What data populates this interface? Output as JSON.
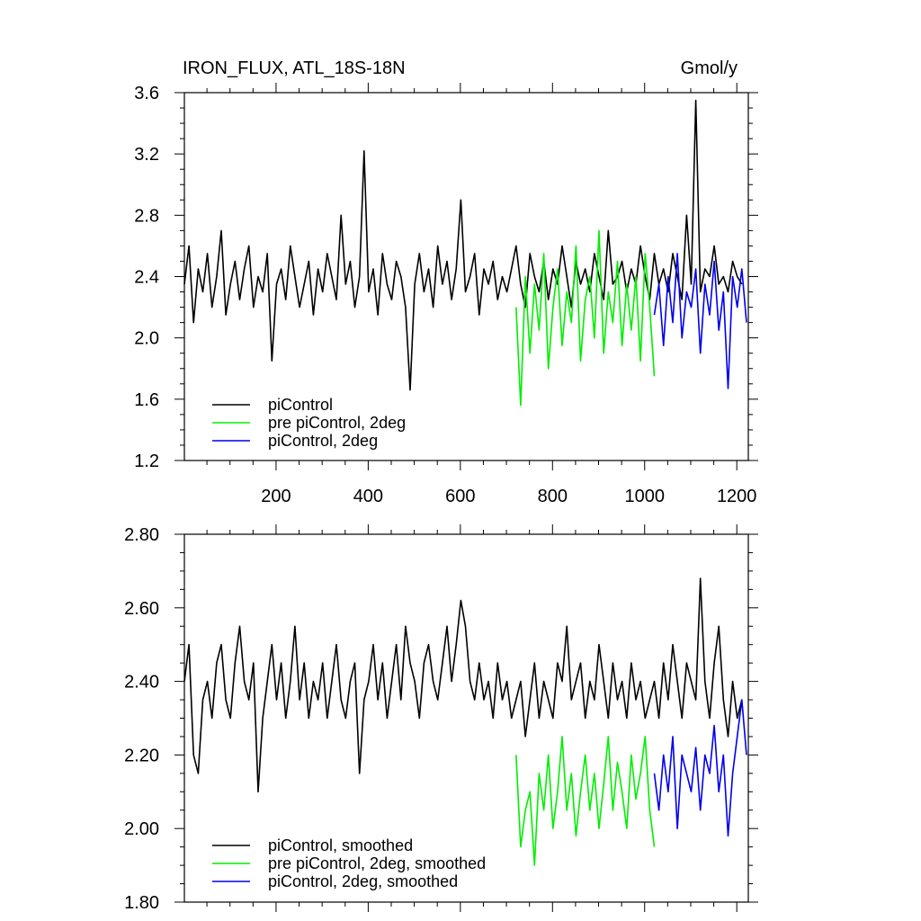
{
  "chart_data": [
    {
      "type": "line",
      "title_left": "IRON_FLUX, ATL_18S-18N",
      "title_right": "Gmol/y",
      "xlabel": "",
      "ylabel": "",
      "xlim": [
        1,
        1225
      ],
      "ylim": [
        1.2,
        3.6
      ],
      "xticks": [
        200,
        400,
        600,
        800,
        1000,
        1200
      ],
      "yticks": [
        1.2,
        1.6,
        2.0,
        2.4,
        2.8,
        3.2,
        3.6
      ],
      "ytick_labels": [
        "1.2",
        "1.6",
        "2.0",
        "2.4",
        "2.8",
        "3.2",
        "3.6"
      ],
      "grid": false,
      "legend_position": "bottom-left",
      "series": [
        {
          "name": "piControl",
          "color": "#000000",
          "x_start": 1,
          "x_step": 10,
          "values": [
            2.35,
            2.6,
            2.1,
            2.45,
            2.3,
            2.55,
            2.2,
            2.4,
            2.7,
            2.15,
            2.35,
            2.5,
            2.25,
            2.45,
            2.6,
            2.2,
            2.4,
            2.3,
            2.55,
            1.85,
            2.35,
            2.45,
            2.25,
            2.6,
            2.4,
            2.2,
            2.35,
            2.5,
            2.15,
            2.45,
            2.3,
            2.55,
            2.4,
            2.25,
            2.8,
            2.35,
            2.5,
            2.2,
            2.4,
            3.22,
            2.3,
            2.45,
            2.15,
            2.55,
            2.35,
            2.25,
            2.5,
            2.4,
            2.2,
            1.66,
            2.35,
            2.55,
            2.3,
            2.45,
            2.2,
            2.6,
            2.35,
            2.5,
            2.25,
            2.45,
            2.9,
            2.3,
            2.4,
            2.55,
            2.15,
            2.45,
            2.35,
            2.5,
            2.25,
            2.4,
            2.3,
            2.45,
            2.6,
            2.35,
            2.2,
            2.55,
            2.4,
            2.3,
            2.5,
            2.25,
            2.45,
            2.35,
            2.6,
            2.4,
            2.2,
            2.5,
            2.35,
            2.45,
            2.3,
            2.55,
            2.4,
            2.25,
            2.7,
            2.35,
            2.4,
            2.5,
            2.3,
            2.45,
            2.35,
            2.6,
            2.4,
            2.25,
            2.55,
            2.35,
            2.45,
            2.3,
            2.55,
            2.4,
            2.25,
            2.8,
            2.35,
            3.55,
            2.3,
            2.45,
            2.4,
            2.6,
            2.35,
            2.4,
            2.3,
            2.5,
            2.4,
            2.35
          ]
        },
        {
          "name": "pre piControl, 2deg",
          "color": "#00ee00",
          "x_start": 721,
          "x_step": 10,
          "values": [
            2.2,
            1.56,
            2.4,
            1.9,
            2.35,
            2.05,
            2.55,
            1.8,
            2.2,
            2.45,
            1.95,
            2.3,
            2.1,
            2.6,
            1.85,
            2.25,
            2.4,
            2.0,
            2.7,
            1.9,
            2.3,
            2.1,
            2.5,
            1.95,
            2.35,
            2.05,
            2.4,
            1.85,
            2.55,
            2.2,
            1.75
          ]
        },
        {
          "name": "piControl, 2deg",
          "color": "#0000ee",
          "x_start": 1021,
          "x_step": 10,
          "values": [
            2.15,
            2.35,
            1.95,
            2.4,
            2.1,
            2.55,
            2.0,
            2.3,
            2.2,
            2.45,
            1.9,
            2.35,
            2.15,
            2.5,
            2.05,
            2.3,
            1.67,
            2.4,
            2.2,
            2.45,
            2.1
          ]
        }
      ]
    },
    {
      "type": "line",
      "title": "",
      "xlabel": "",
      "ylabel": "",
      "xlim": [
        1,
        1225
      ],
      "ylim": [
        1.8,
        2.8
      ],
      "yticks": [
        1.8,
        2.0,
        2.2,
        2.4,
        2.6,
        2.8
      ],
      "ytick_labels": [
        "1.80",
        "2.00",
        "2.20",
        "2.40",
        "2.60",
        "2.80"
      ],
      "grid": false,
      "legend_position": "bottom-left",
      "series": [
        {
          "name": "piControl, smoothed",
          "color": "#000000",
          "x_start": 1,
          "x_step": 10,
          "values": [
            2.4,
            2.5,
            2.2,
            2.15,
            2.35,
            2.4,
            2.3,
            2.45,
            2.5,
            2.35,
            2.3,
            2.45,
            2.55,
            2.4,
            2.35,
            2.45,
            2.1,
            2.3,
            2.4,
            2.5,
            2.35,
            2.45,
            2.3,
            2.4,
            2.55,
            2.35,
            2.45,
            2.3,
            2.4,
            2.35,
            2.45,
            2.3,
            2.4,
            2.5,
            2.35,
            2.3,
            2.4,
            2.45,
            2.15,
            2.35,
            2.4,
            2.5,
            2.35,
            2.45,
            2.3,
            2.4,
            2.5,
            2.35,
            2.55,
            2.45,
            2.4,
            2.3,
            2.45,
            2.5,
            2.4,
            2.35,
            2.45,
            2.55,
            2.4,
            2.5,
            2.62,
            2.55,
            2.4,
            2.35,
            2.45,
            2.35,
            2.4,
            2.3,
            2.45,
            2.35,
            2.4,
            2.3,
            2.35,
            2.4,
            2.25,
            2.35,
            2.45,
            2.3,
            2.4,
            2.35,
            2.3,
            2.45,
            2.4,
            2.55,
            2.35,
            2.4,
            2.45,
            2.3,
            2.4,
            2.35,
            2.5,
            2.4,
            2.3,
            2.45,
            2.35,
            2.4,
            2.3,
            2.45,
            2.35,
            2.4,
            2.3,
            2.35,
            2.4,
            2.3,
            2.45,
            2.35,
            2.5,
            2.4,
            2.3,
            2.45,
            2.4,
            2.35,
            2.68,
            2.4,
            2.3,
            2.45,
            2.55,
            2.35,
            2.25,
            2.4,
            2.3,
            2.35
          ]
        },
        {
          "name": "pre piControl, 2deg, smoothed",
          "color": "#00ee00",
          "x_start": 721,
          "x_step": 10,
          "values": [
            2.2,
            1.95,
            2.05,
            2.1,
            1.9,
            2.15,
            2.05,
            2.2,
            2.0,
            2.1,
            2.25,
            2.05,
            2.15,
            1.98,
            2.1,
            2.2,
            2.05,
            2.15,
            2.0,
            2.12,
            2.25,
            2.05,
            2.18,
            2.1,
            2.0,
            2.2,
            2.08,
            2.15,
            2.25,
            2.05,
            1.95
          ]
        },
        {
          "name": "piControl, 2deg, smoothed",
          "color": "#0000ee",
          "x_start": 1021,
          "x_step": 10,
          "values": [
            2.15,
            2.05,
            2.2,
            2.1,
            2.25,
            2.0,
            2.2,
            2.15,
            2.1,
            2.22,
            2.05,
            2.2,
            2.15,
            2.28,
            2.1,
            2.2,
            1.98,
            2.15,
            2.25,
            2.35,
            2.2
          ]
        }
      ]
    }
  ]
}
